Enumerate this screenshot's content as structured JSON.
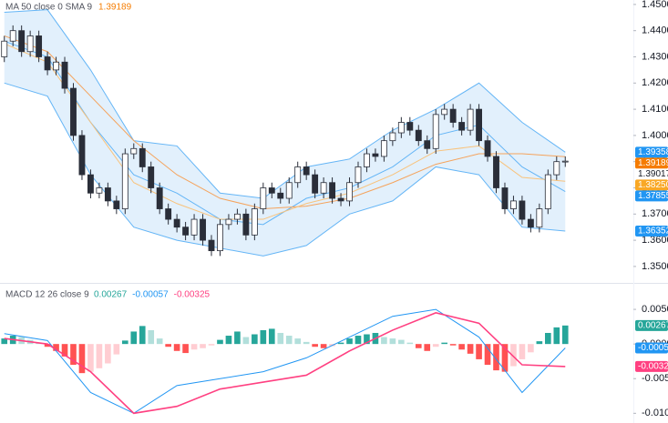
{
  "chart_data": [
    {
      "type": "candlestick",
      "legend": "MA 50 close 0 SMA 9",
      "legend_value": 1.39189,
      "legend_value_color": "#f57c00",
      "up_color": "#ffffff",
      "down_color": "#2a2e39",
      "wick_color": "#2a2e39",
      "ohlc": [
        [
          1.43,
          1.438,
          1.428,
          1.436
        ],
        [
          1.436,
          1.442,
          1.434,
          1.44
        ],
        [
          1.44,
          1.442,
          1.43,
          1.432
        ],
        [
          1.432,
          1.44,
          1.43,
          1.438
        ],
        [
          1.438,
          1.44,
          1.428,
          1.43
        ],
        [
          1.43,
          1.432,
          1.423,
          1.425
        ],
        [
          1.425,
          1.43,
          1.423,
          1.428
        ],
        [
          1.428,
          1.43,
          1.416,
          1.418
        ],
        [
          1.418,
          1.42,
          1.398,
          1.4
        ],
        [
          1.4,
          1.402,
          1.383,
          1.385
        ],
        [
          1.385,
          1.387,
          1.376,
          1.378
        ],
        [
          1.378,
          1.382,
          1.376,
          1.38
        ],
        [
          1.38,
          1.382,
          1.373,
          1.375
        ],
        [
          1.375,
          1.377,
          1.37,
          1.372
        ],
        [
          1.372,
          1.395,
          1.37,
          1.393
        ],
        [
          1.393,
          1.397,
          1.391,
          1.395
        ],
        [
          1.395,
          1.397,
          1.386,
          1.388
        ],
        [
          1.388,
          1.39,
          1.378,
          1.38
        ],
        [
          1.38,
          1.382,
          1.37,
          1.372
        ],
        [
          1.372,
          1.374,
          1.366,
          1.368
        ],
        [
          1.368,
          1.37,
          1.363,
          1.365
        ],
        [
          1.365,
          1.367,
          1.36,
          1.362
        ],
        [
          1.362,
          1.37,
          1.36,
          1.368
        ],
        [
          1.368,
          1.37,
          1.358,
          1.36
        ],
        [
          1.36,
          1.362,
          1.354,
          1.356
        ],
        [
          1.356,
          1.368,
          1.354,
          1.366
        ],
        [
          1.366,
          1.37,
          1.364,
          1.368
        ],
        [
          1.368,
          1.372,
          1.366,
          1.37
        ],
        [
          1.37,
          1.372,
          1.36,
          1.362
        ],
        [
          1.362,
          1.374,
          1.36,
          1.372
        ],
        [
          1.372,
          1.382,
          1.37,
          1.38
        ],
        [
          1.38,
          1.382,
          1.376,
          1.378
        ],
        [
          1.378,
          1.38,
          1.374,
          1.376
        ],
        [
          1.376,
          1.384,
          1.374,
          1.382
        ],
        [
          1.382,
          1.39,
          1.38,
          1.388
        ],
        [
          1.388,
          1.39,
          1.383,
          1.385
        ],
        [
          1.385,
          1.387,
          1.376,
          1.378
        ],
        [
          1.378,
          1.384,
          1.376,
          1.382
        ],
        [
          1.382,
          1.384,
          1.374,
          1.376
        ],
        [
          1.376,
          1.378,
          1.373,
          1.375
        ],
        [
          1.375,
          1.384,
          1.373,
          1.382
        ],
        [
          1.382,
          1.39,
          1.38,
          1.388
        ],
        [
          1.388,
          1.395,
          1.386,
          1.393
        ],
        [
          1.393,
          1.395,
          1.39,
          1.392
        ],
        [
          1.392,
          1.4,
          1.39,
          1.398
        ],
        [
          1.398,
          1.403,
          1.396,
          1.401
        ],
        [
          1.401,
          1.407,
          1.399,
          1.405
        ],
        [
          1.405,
          1.407,
          1.4,
          1.402
        ],
        [
          1.402,
          1.404,
          1.396,
          1.398
        ],
        [
          1.398,
          1.4,
          1.393,
          1.395
        ],
        [
          1.395,
          1.41,
          1.393,
          1.408
        ],
        [
          1.408,
          1.412,
          1.406,
          1.41
        ],
        [
          1.41,
          1.412,
          1.403,
          1.405
        ],
        [
          1.405,
          1.407,
          1.4,
          1.402
        ],
        [
          1.402,
          1.412,
          1.4,
          1.41
        ],
        [
          1.41,
          1.412,
          1.396,
          1.398
        ],
        [
          1.398,
          1.4,
          1.39,
          1.392
        ],
        [
          1.392,
          1.394,
          1.378,
          1.38
        ],
        [
          1.38,
          1.382,
          1.37,
          1.372
        ],
        [
          1.372,
          1.377,
          1.37,
          1.375
        ],
        [
          1.375,
          1.377,
          1.366,
          1.368
        ],
        [
          1.368,
          1.37,
          1.363,
          1.365
        ],
        [
          1.365,
          1.374,
          1.363,
          1.372
        ],
        [
          1.372,
          1.387,
          1.37,
          1.385
        ],
        [
          1.385,
          1.392,
          1.383,
          1.39
        ],
        [
          1.39,
          1.392,
          1.388,
          1.3902
        ]
      ],
      "bands": {
        "color": "#64b5f6",
        "fill": "#cfe6fa",
        "upper": [
          1.447,
          1.448,
          1.425,
          1.398,
          1.396,
          1.378,
          1.376,
          1.388,
          1.391,
          1.402,
          1.41,
          1.42,
          1.405,
          1.3936
        ],
        "middle": [
          1.436,
          1.43,
          1.405,
          1.385,
          1.378,
          1.368,
          1.366,
          1.376,
          1.38,
          1.388,
          1.4,
          1.404,
          1.388,
          1.3786
        ],
        "lower": [
          1.42,
          1.415,
          1.385,
          1.365,
          1.36,
          1.357,
          1.354,
          1.358,
          1.37,
          1.375,
          1.388,
          1.385,
          1.365,
          1.3635
        ]
      },
      "lines": [
        {
          "color": "#f5a35c",
          "values": [
            1.438,
            1.432,
            1.415,
            1.398,
            1.385,
            1.376,
            1.372,
            1.373,
            1.376,
            1.382,
            1.389,
            1.393,
            1.393,
            1.3919
          ]
        },
        {
          "color": "#f9c27a",
          "values": [
            1.435,
            1.428,
            1.405,
            1.382,
            1.374,
            1.368,
            1.368,
            1.374,
            1.378,
            1.385,
            1.394,
            1.396,
            1.384,
            1.3825
          ]
        }
      ],
      "ylim": [
        1.3458,
        1.4517
      ],
      "yticks": [
        {
          "value": 1.45,
          "label": "1.45000"
        },
        {
          "value": 1.44,
          "label": "1.44000"
        },
        {
          "value": 1.43,
          "label": "1.43000"
        },
        {
          "value": 1.42,
          "label": "1.42000"
        },
        {
          "value": 1.41,
          "label": "1.41000"
        },
        {
          "value": 1.4,
          "label": "1.40000"
        },
        {
          "value": 1.39,
          "label": "1.39000"
        },
        {
          "value": 1.38,
          "label": "1.38000"
        },
        {
          "value": 1.37,
          "label": "1.37000"
        },
        {
          "value": 1.36,
          "label": "1.36000"
        },
        {
          "value": 1.35,
          "label": "1.35000"
        }
      ],
      "tags": [
        {
          "value": 1.39358,
          "color": "#2196f3"
        },
        {
          "value": 1.39189,
          "color": "#f57c00"
        },
        {
          "value": 1.39017,
          "color": "#ffffff"
        },
        {
          "value": 1.3825,
          "label": "1.38250",
          "color": "#f9a825"
        },
        {
          "value": 1.37855,
          "color": "#2196f3"
        },
        {
          "value": 1.36352,
          "color": "#2196f3"
        }
      ]
    },
    {
      "type": "macd",
      "legend": "MACD 12 26 close 9",
      "legend_values": [
        0.00267,
        -0.00057,
        -0.00325
      ],
      "legend_colors": [
        "#26a69a",
        "#2196f3",
        "#ff4081"
      ],
      "hist_colors": [
        "#26a69a",
        "#b2dfdb",
        "#ffcdd2",
        "#ff5252"
      ],
      "histogram": [
        0.0008,
        0.0012,
        0.001,
        0.0006,
        0.0002,
        -0.0004,
        -0.001,
        -0.0018,
        -0.003,
        -0.0042,
        -0.004,
        -0.0035,
        -0.0028,
        -0.0015,
        0.0005,
        0.0018,
        0.0026,
        0.002,
        0.0008,
        -0.0004,
        -0.001,
        -0.0013,
        -0.0008,
        -0.0006,
        -0.0002,
        0.0006,
        0.0012,
        0.0018,
        0.001,
        0.0014,
        0.002,
        0.0022,
        0.0016,
        0.0012,
        0.0008,
        0.0003,
        -0.0004,
        -0.0006,
        -0.0003,
        0.0002,
        0.0008,
        0.0012,
        0.0014,
        0.0016,
        0.001,
        0.0008,
        0.0006,
        0.0002,
        -0.0006,
        -0.001,
        -0.0004,
        0.0002,
        -0.0002,
        -0.0008,
        -0.0014,
        -0.0022,
        -0.003,
        -0.0038,
        -0.004,
        -0.0032,
        -0.0022,
        -0.0012,
        0.0004,
        0.0016,
        0.0024,
        0.00267
      ],
      "lines": [
        {
          "color": "#2196f3",
          "values": [
            0.0015,
            0.0005,
            -0.007,
            -0.01,
            -0.006,
            -0.005,
            -0.004,
            -0.002,
            0.001,
            0.004,
            0.005,
            0.001,
            -0.007,
            -0.00057
          ]
        },
        {
          "color": "#ff4081",
          "values": [
            0.0008,
            0.0,
            -0.004,
            -0.01,
            -0.009,
            -0.0065,
            -0.0055,
            -0.0045,
            -0.001,
            0.002,
            0.0045,
            0.003,
            -0.003,
            -0.00325
          ]
        }
      ],
      "ylim": [
        -0.0114,
        0.0079
      ],
      "yticks": [
        {
          "value": 0.005,
          "label": "0.00500"
        },
        {
          "value": 0,
          "label": "0.00000"
        },
        {
          "value": -0.005,
          "label": "-0.00500"
        },
        {
          "value": -0.01,
          "label": "-0.01000"
        }
      ],
      "tags": [
        {
          "value": 0.00267,
          "color": "#26a69a"
        },
        {
          "value": -0.00057,
          "color": "#2196f3"
        },
        {
          "value": -0.00325,
          "color": "#ff4081"
        }
      ]
    }
  ]
}
